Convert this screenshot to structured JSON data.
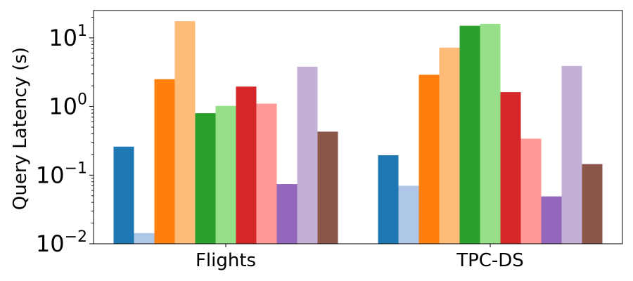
{
  "chart_data": {
    "type": "bar",
    "ylabel": "Query Latency (s)",
    "xlabel": "",
    "yscale": "log",
    "ylim": [
      0.01,
      25
    ],
    "yticks": [
      {
        "value": 0.01,
        "base": "10",
        "exp": "−2"
      },
      {
        "value": 0.1,
        "base": "10",
        "exp": "−1"
      },
      {
        "value": 1,
        "base": "10",
        "exp": "0"
      },
      {
        "value": 10,
        "base": "10",
        "exp": "1"
      }
    ],
    "categories": [
      "Flights",
      "TPC-DS"
    ],
    "series": [
      {
        "color": "#1f77b4",
        "values": [
          0.26,
          0.195
        ]
      },
      {
        "color": "#aec7e8",
        "values": [
          0.0143,
          0.07
        ]
      },
      {
        "color": "#ff7f0e",
        "values": [
          2.5,
          2.9
        ]
      },
      {
        "color": "#ffbb78",
        "values": [
          17.5,
          7.2
        ]
      },
      {
        "color": "#2ca02c",
        "values": [
          0.8,
          15.0
        ]
      },
      {
        "color": "#98df8a",
        "values": [
          1.02,
          16.0
        ]
      },
      {
        "color": "#d62728",
        "values": [
          1.95,
          1.62
        ]
      },
      {
        "color": "#ff9896",
        "values": [
          1.1,
          0.34
        ]
      },
      {
        "color": "#9467bd",
        "values": [
          0.074,
          0.049
        ]
      },
      {
        "color": "#c5b0d5",
        "values": [
          3.8,
          3.9
        ]
      },
      {
        "color": "#8c564b",
        "values": [
          0.43,
          0.145
        ]
      }
    ],
    "grid": false,
    "legend": "none"
  }
}
